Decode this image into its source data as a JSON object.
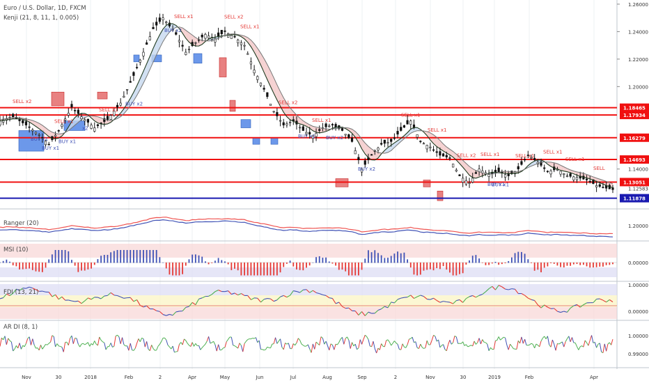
{
  "header": {
    "title": "Euro / U.S. Dollar, 1D, FXCM",
    "indicator": "Kenji (21, 8, 11, 1, 0.005)"
  },
  "colors": {
    "resistance": "#f01010",
    "support": "#1a1ab0",
    "candle": "#111111",
    "ma_dark": "#1f3a1f",
    "ma_light": "#777777",
    "sell_zone": "#e57373",
    "buy_zone": "#5c8de8",
    "ranger_red": "#ef5350",
    "ranger_blue": "#3f51b5"
  },
  "chart_data": [
    {
      "type": "candlestick",
      "title": "Euro / U.S. Dollar, 1D, FXCM",
      "y_axis_ticks": [
        "1.26000",
        "1.24000",
        "1.22000",
        "1.20000",
        "1.14000",
        "1.12583"
      ],
      "ylim": [
        1.113,
        1.262
      ],
      "x_tick_labels": [
        "Nov",
        "30",
        "2018",
        "Feb",
        "2",
        "Apr",
        "May",
        "Jun",
        "Jul",
        "Aug",
        "Sep",
        "2",
        "Nov",
        "30",
        "2019",
        "Feb",
        "Apr"
      ],
      "horizontal_levels": [
        {
          "value": 1.18465,
          "label": "1.18465",
          "kind": "resistance"
        },
        {
          "value": 1.17934,
          "label": "1.17934",
          "kind": "resistance"
        },
        {
          "value": 1.16279,
          "label": "1.16279",
          "kind": "resistance"
        },
        {
          "value": 1.14693,
          "label": "1.14693",
          "kind": "resistance"
        },
        {
          "value": 1.13051,
          "label": "1.13051",
          "kind": "resistance"
        },
        {
          "value": 1.11878,
          "label": "1.11878",
          "kind": "support"
        }
      ],
      "last_price": "1.12583",
      "price_path": [
        [
          0,
          1.175
        ],
        [
          4,
          1.178
        ],
        [
          8,
          1.172
        ],
        [
          12,
          1.165
        ],
        [
          15,
          1.158
        ],
        [
          18,
          1.168
        ],
        [
          22,
          1.185
        ],
        [
          25,
          1.178
        ],
        [
          29,
          1.17
        ],
        [
          33,
          1.176
        ],
        [
          37,
          1.188
        ],
        [
          41,
          1.208
        ],
        [
          44,
          1.225
        ],
        [
          47,
          1.242
        ],
        [
          50,
          1.25
        ],
        [
          54,
          1.238
        ],
        [
          57,
          1.225
        ],
        [
          60,
          1.232
        ],
        [
          63,
          1.238
        ],
        [
          66,
          1.235
        ],
        [
          69,
          1.24
        ],
        [
          72,
          1.236
        ],
        [
          75,
          1.23
        ],
        [
          78,
          1.212
        ],
        [
          81,
          1.198
        ],
        [
          84,
          1.182
        ],
        [
          87,
          1.172
        ],
        [
          90,
          1.175
        ],
        [
          93,
          1.168
        ],
        [
          96,
          1.164
        ],
        [
          99,
          1.17
        ],
        [
          102,
          1.172
        ],
        [
          105,
          1.168
        ],
        [
          108,
          1.16
        ],
        [
          111,
          1.14
        ],
        [
          114,
          1.15
        ],
        [
          117,
          1.158
        ],
        [
          120,
          1.16
        ],
        [
          123,
          1.168
        ],
        [
          126,
          1.175
        ],
        [
          129,
          1.16
        ],
        [
          132,
          1.156
        ],
        [
          135,
          1.15
        ],
        [
          138,
          1.148
        ],
        [
          141,
          1.135
        ],
        [
          144,
          1.13
        ],
        [
          147,
          1.14
        ],
        [
          150,
          1.136
        ],
        [
          153,
          1.138
        ],
        [
          156,
          1.135
        ],
        [
          159,
          1.14
        ],
        [
          162,
          1.15
        ],
        [
          165,
          1.145
        ],
        [
          168,
          1.138
        ],
        [
          171,
          1.14
        ],
        [
          174,
          1.135
        ],
        [
          177,
          1.134
        ],
        [
          180,
          1.132
        ],
        [
          183,
          1.128
        ],
        [
          186,
          1.126
        ],
        [
          188,
          1.125
        ]
      ],
      "signals": [
        {
          "label": "SELL x2",
          "kind": "sell"
        },
        {
          "label": "BUY x1",
          "kind": "buy"
        },
        {
          "label": "SELL x1",
          "kind": "sell"
        },
        {
          "label": "BUY x1",
          "kind": "buy"
        },
        {
          "label": "x2",
          "kind": "buy"
        },
        {
          "label": "BUY x1",
          "kind": "buy"
        },
        {
          "label": "SELL x1",
          "kind": "sell"
        },
        {
          "label": "BUY x2",
          "kind": "buy"
        },
        {
          "label": "SELL x1",
          "kind": "sell"
        },
        {
          "label": "BUY x2",
          "kind": "buy"
        },
        {
          "label": "SELL x2",
          "kind": "sell"
        },
        {
          "label": "SELL x1",
          "kind": "sell"
        },
        {
          "label": "SELL x2",
          "kind": "sell"
        },
        {
          "label": "BUY x1",
          "kind": "buy"
        },
        {
          "label": "SELL x1",
          "kind": "sell"
        },
        {
          "label": "BUY x2",
          "kind": "buy"
        },
        {
          "label": "BUY x2",
          "kind": "buy"
        },
        {
          "label": "SELL x1",
          "kind": "sell"
        },
        {
          "label": "SELL x1",
          "kind": "sell"
        },
        {
          "label": "SELL x2",
          "kind": "sell"
        },
        {
          "label": "SELL x1",
          "kind": "sell"
        },
        {
          "label": "BUY x1",
          "kind": "buy"
        },
        {
          "label": "BUY x1",
          "kind": "buy"
        },
        {
          "label": "SELL x1",
          "kind": "sell"
        },
        {
          "label": "SELL x1",
          "kind": "sell"
        },
        {
          "label": "SELL x1",
          "kind": "sell"
        },
        {
          "label": "SELL",
          "kind": "sell"
        }
      ]
    },
    {
      "type": "line",
      "title": "Ranger (20)",
      "y_axis_ticks": [
        "1.20000"
      ]
    },
    {
      "type": "bar",
      "title": "MSI (10)",
      "y_axis_ticks": [
        "0.00000"
      ]
    },
    {
      "type": "line",
      "title": "FDI (13, 21)",
      "y_axis_ticks": [
        "1.00000",
        "0.00000"
      ]
    },
    {
      "type": "line",
      "title": "AR DI (8, 1)",
      "y_axis_ticks": [
        "1.00000",
        "0.99000"
      ]
    }
  ]
}
